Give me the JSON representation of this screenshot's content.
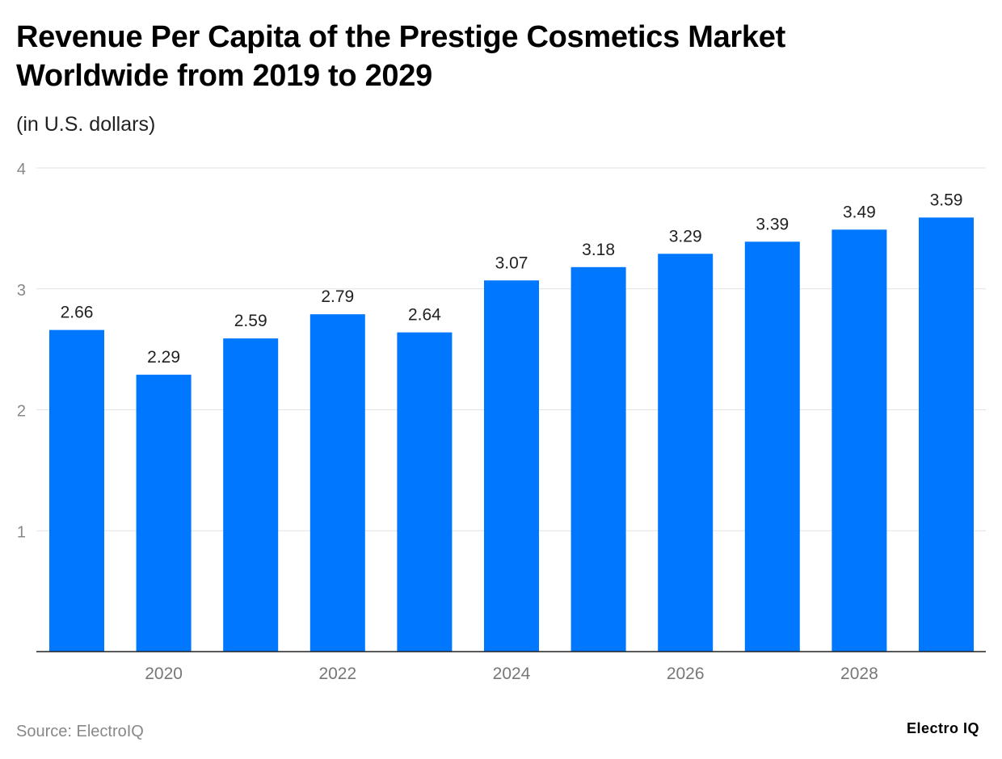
{
  "chart_data": {
    "type": "bar",
    "title": "Revenue Per Capita of the Prestige Cosmetics Market Worldwide from 2019 to 2029",
    "subtitle": "(in U.S. dollars)",
    "categories": [
      "2019",
      "2020",
      "2021",
      "2022",
      "2023",
      "2024",
      "2025",
      "2026",
      "2027",
      "2028",
      "2029"
    ],
    "values": [
      2.66,
      2.29,
      2.59,
      2.79,
      2.64,
      3.07,
      3.18,
      3.29,
      3.39,
      3.49,
      3.59
    ],
    "x_tick_labels": [
      "2020",
      "2022",
      "2024",
      "2026",
      "2028"
    ],
    "y_ticks": [
      1,
      2,
      3,
      4
    ],
    "ylim": [
      0,
      4
    ],
    "grid": true,
    "bar_color": "#0077ff",
    "xlabel": "",
    "ylabel": ""
  },
  "source": "Source: ElectroIQ",
  "logo": "Electro IQ"
}
